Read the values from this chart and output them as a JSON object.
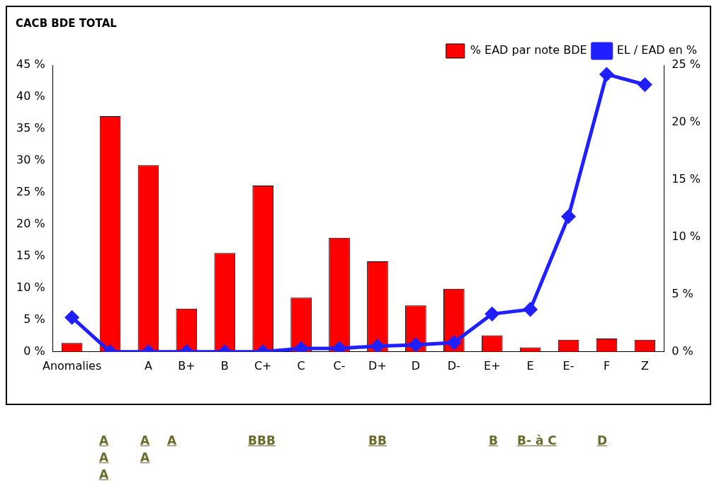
{
  "chart_data": {
    "type": "bar",
    "title": "CACB BDE TOTAL",
    "categories": [
      "Anomalies",
      null,
      "A",
      "B+",
      "B",
      "C+",
      "C",
      "C-",
      "D+",
      "D",
      "D-",
      "E+",
      "E",
      "E-",
      "F",
      "Z"
    ],
    "series": [
      {
        "name": "% EAD par note BDE",
        "color": "#ff0000",
        "values": [
          1.4,
          37.0,
          29.3,
          6.8,
          15.5,
          26.1,
          8.5,
          17.9,
          14.2,
          7.3,
          9.9,
          2.6,
          0.7,
          1.9,
          2.1,
          1.9
        ]
      },
      {
        "name": "EL / EAD en %",
        "type": "line",
        "axis": "y2",
        "color": "#1f1fff",
        "values": [
          3.0,
          0,
          0,
          0,
          0,
          0,
          0.3,
          0.3,
          0.5,
          0.6,
          0.8,
          3.3,
          3.7,
          11.8,
          24.2,
          23.3
        ]
      }
    ],
    "ylim": [
      0,
      45
    ],
    "yticks": [
      {
        "value": 0,
        "label": "0 %"
      },
      {
        "value": 5,
        "label": "5 %"
      },
      {
        "value": 10,
        "label": "10 %"
      },
      {
        "value": 15,
        "label": "15 %"
      },
      {
        "value": 20,
        "label": "20 %"
      },
      {
        "value": 25,
        "label": "25 %"
      },
      {
        "value": 30,
        "label": "30 %"
      },
      {
        "value": 35,
        "label": "35 %"
      },
      {
        "value": 40,
        "label": "40 %"
      },
      {
        "value": 45,
        "label": "45 %"
      }
    ],
    "y2lim": [
      0,
      25
    ],
    "y2ticks": [
      {
        "value": 0,
        "label": "0 %"
      },
      {
        "value": 5,
        "label": "5 %"
      },
      {
        "value": 10,
        "label": "10 %"
      },
      {
        "value": 15,
        "label": "15 %"
      },
      {
        "value": 20,
        "label": "20 %"
      },
      {
        "value": 25,
        "label": "25 %"
      }
    ],
    "grid": false,
    "legend": "top",
    "marker": "diamond",
    "line_style": "solid",
    "annotations": [
      "A A A",
      "A A",
      "A",
      "BBB",
      "BB",
      "B",
      "B- à C",
      "D"
    ]
  }
}
